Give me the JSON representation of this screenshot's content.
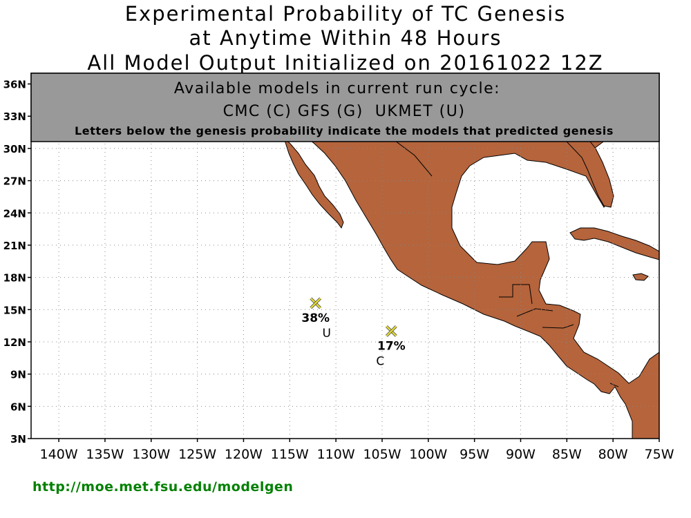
{
  "title": {
    "line1": "Experimental Probability of TC Genesis",
    "line2": "at Anytime Within 48 Hours",
    "line3": "All Model Output Initialized on 20161022 12Z"
  },
  "banner": {
    "line1": "Available models in current run cycle:",
    "line2": "CMC (C) GFS (G)  UKMET (U)",
    "line3": "Letters below the genesis probability indicate the models that predicted genesis"
  },
  "axes": {
    "lat_labels": [
      "3N",
      "6N",
      "9N",
      "12N",
      "15N",
      "18N",
      "21N",
      "24N",
      "27N",
      "30N",
      "33N",
      "36N"
    ],
    "lon_labels": [
      "140W",
      "135W",
      "130W",
      "125W",
      "120W",
      "115W",
      "110W",
      "105W",
      "100W",
      "95W",
      "90W",
      "85W",
      "80W",
      "75W"
    ]
  },
  "colors": {
    "land": "#b5643c",
    "ocean": "#ffffff",
    "banner_bg": "#999999",
    "marker": "#e8e030",
    "footer_link": "#008000"
  },
  "genesis_points": [
    {
      "lon": -112.2,
      "lat": 15.6,
      "probability": "38%",
      "models": "U"
    },
    {
      "lon": -104.0,
      "lat": 13.0,
      "probability": "17%",
      "models": "C"
    }
  ],
  "footer": {
    "url": "http://moe.met.fsu.edu/modelgen"
  }
}
